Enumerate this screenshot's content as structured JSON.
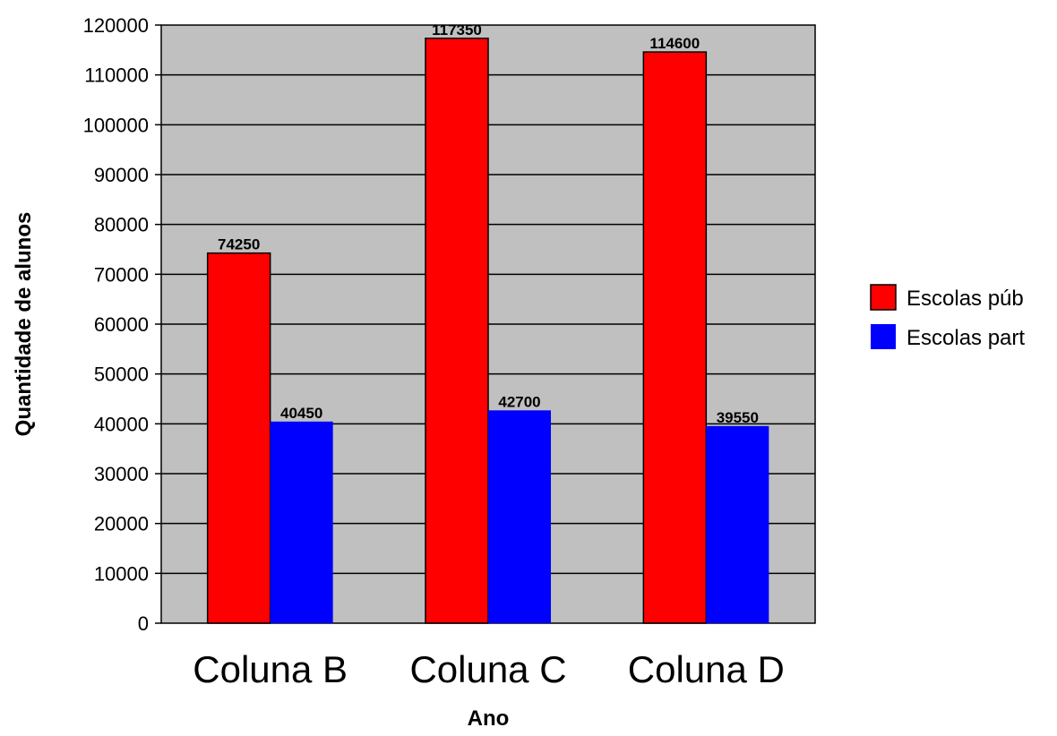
{
  "chart_data": {
    "type": "bar",
    "title": "",
    "xlabel": "Ano",
    "ylabel": "Quantidade de alunos",
    "categories": [
      "Coluna B",
      "Coluna C",
      "Coluna D"
    ],
    "series": [
      {
        "name": "Escolas púb",
        "color": "#ff0000",
        "values": [
          74250,
          117350,
          114600
        ]
      },
      {
        "name": "Escolas part",
        "color": "#0000ff",
        "values": [
          40450,
          42700,
          39550
        ]
      }
    ],
    "ylim": [
      0,
      120000
    ],
    "yticks": [
      "0",
      "10000",
      "20000",
      "30000",
      "40000",
      "50000",
      "60000",
      "70000",
      "80000",
      "90000",
      "100000",
      "110000",
      "120000"
    ],
    "grid": true,
    "plot_background": "#c0c0c0",
    "legend_position": "right",
    "data_labels": true
  }
}
